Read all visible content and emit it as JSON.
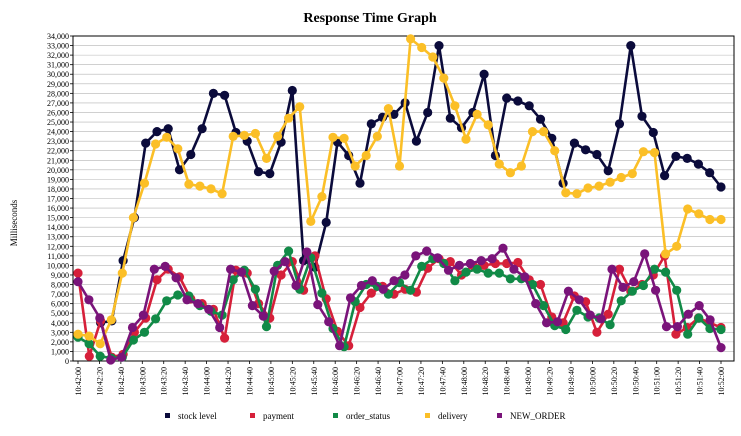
{
  "chart_data": {
    "type": "line",
    "title": "Response Time Graph",
    "xlabel": "",
    "ylabel": "Milliseconds",
    "ylim": [
      0,
      34000
    ],
    "ytick_step": 1000,
    "grid": true,
    "legend_position": "bottom",
    "x_tick_labels": [
      "10:42:00",
      "10:42:20",
      "10:42:40",
      "10:43:00",
      "10:43:20",
      "10:43:40",
      "10:44:00",
      "10:44:20",
      "10:44:40",
      "10:45:00",
      "10:45:20",
      "10:45:40",
      "10:46:00",
      "10:46:20",
      "10:46:40",
      "10:47:00",
      "10:47:20",
      "10:47:40",
      "10:48:00",
      "10:48:20",
      "10:48:40",
      "10:49:00",
      "10:49:20",
      "10:49:40",
      "10:50:00",
      "10:50:20",
      "10:50:40",
      "10:51:00",
      "10:51:20",
      "10:51:40",
      "10:52:00"
    ],
    "x_start": "10:42:00",
    "x_end": "10:52:00",
    "series": [
      {
        "name": "stock level",
        "color": "#0b0b3b",
        "values": [
          null,
          null,
          4000,
          4200,
          10500,
          15000,
          22800,
          24000,
          24300,
          20000,
          21600,
          24300,
          28000,
          27800,
          23900,
          23000,
          19800,
          19600,
          22900,
          28300,
          10500,
          9800,
          14500,
          22900,
          21500,
          18600,
          24800,
          25500,
          25800,
          27000,
          23000,
          26000,
          33000,
          25400,
          24400,
          26000,
          30000,
          21500,
          27500,
          27200,
          26700,
          25300,
          23300,
          18600,
          22800,
          22100,
          21600,
          19900,
          24800,
          33000,
          25600,
          23900,
          19400,
          21400,
          21200,
          20600,
          19700,
          18200
        ]
      },
      {
        "name": "payment",
        "color": "#d6203a",
        "values": [
          9200,
          500,
          4200,
          400,
          700,
          3000,
          4500,
          8500,
          9600,
          8800,
          6500,
          6000,
          5400,
          2400,
          9500,
          9200,
          6000,
          4500,
          9000,
          10400,
          7400,
          11000,
          6500,
          3100,
          1600,
          5600,
          7100,
          7800,
          7000,
          7500,
          7200,
          9700,
          10700,
          10400,
          9000,
          10000,
          10000,
          10200,
          10200,
          10300,
          8500,
          8000,
          4600,
          4000,
          6800,
          6200,
          3000,
          4900,
          9600,
          7300,
          8000,
          9000,
          11000,
          2800,
          3500,
          4500,
          4000,
          3500
        ]
      },
      {
        "name": "order_status",
        "color": "#118a47",
        "values": [
          2500,
          1800,
          500,
          300,
          400,
          2200,
          3000,
          4400,
          6300,
          6900,
          6800,
          5800,
          5200,
          4800,
          8500,
          9500,
          7500,
          3600,
          10000,
          11500,
          7500,
          10800,
          7100,
          3400,
          1500,
          6200,
          8000,
          7800,
          7000,
          8200,
          7400,
          9900,
          10700,
          10200,
          8400,
          9300,
          9600,
          9200,
          9200,
          8600,
          8600,
          8000,
          5800,
          3700,
          3300,
          5300,
          4600,
          4500,
          3800,
          6300,
          7300,
          7900,
          9600,
          9300,
          7400,
          2800,
          4500,
          3400,
          3300
        ]
      },
      {
        "name": "delivery",
        "color": "#fbbf27",
        "values": [
          2800,
          2600,
          1800,
          4300,
          9200,
          15000,
          18600,
          22700,
          23400,
          22200,
          18500,
          18300,
          18000,
          17500,
          23500,
          23600,
          23800,
          21200,
          23500,
          25400,
          26600,
          14600,
          17200,
          23400,
          23300,
          20400,
          21500,
          23500,
          26400,
          20400,
          33700,
          32800,
          31800,
          29600,
          26700,
          23200,
          25800,
          24700,
          20600,
          19700,
          20400,
          24000,
          24000,
          22000,
          17600,
          17500,
          18100,
          18300,
          18700,
          19200,
          19600,
          21900,
          21800,
          11200,
          12000,
          15900,
          15400,
          14800,
          14800
        ]
      },
      {
        "name": "NEW_ORDER",
        "color": "#7a147a",
        "values": [
          8300,
          6400,
          4500,
          100,
          400,
          3500,
          4800,
          9600,
          9900,
          8700,
          6400,
          6000,
          5400,
          3500,
          9600,
          9300,
          5800,
          4700,
          9400,
          10400,
          7900,
          11400,
          5900,
          4100,
          1600,
          6600,
          7900,
          8400,
          7500,
          8400,
          9000,
          11000,
          11500,
          10800,
          9500,
          10000,
          10200,
          10500,
          10700,
          11800,
          9600,
          8800,
          6000,
          4000,
          4100,
          7300,
          6400,
          4800,
          4400,
          9600,
          7700,
          8300,
          11200,
          7400,
          3600,
          3600,
          4900,
          5800,
          4300,
          1400
        ]
      }
    ]
  }
}
